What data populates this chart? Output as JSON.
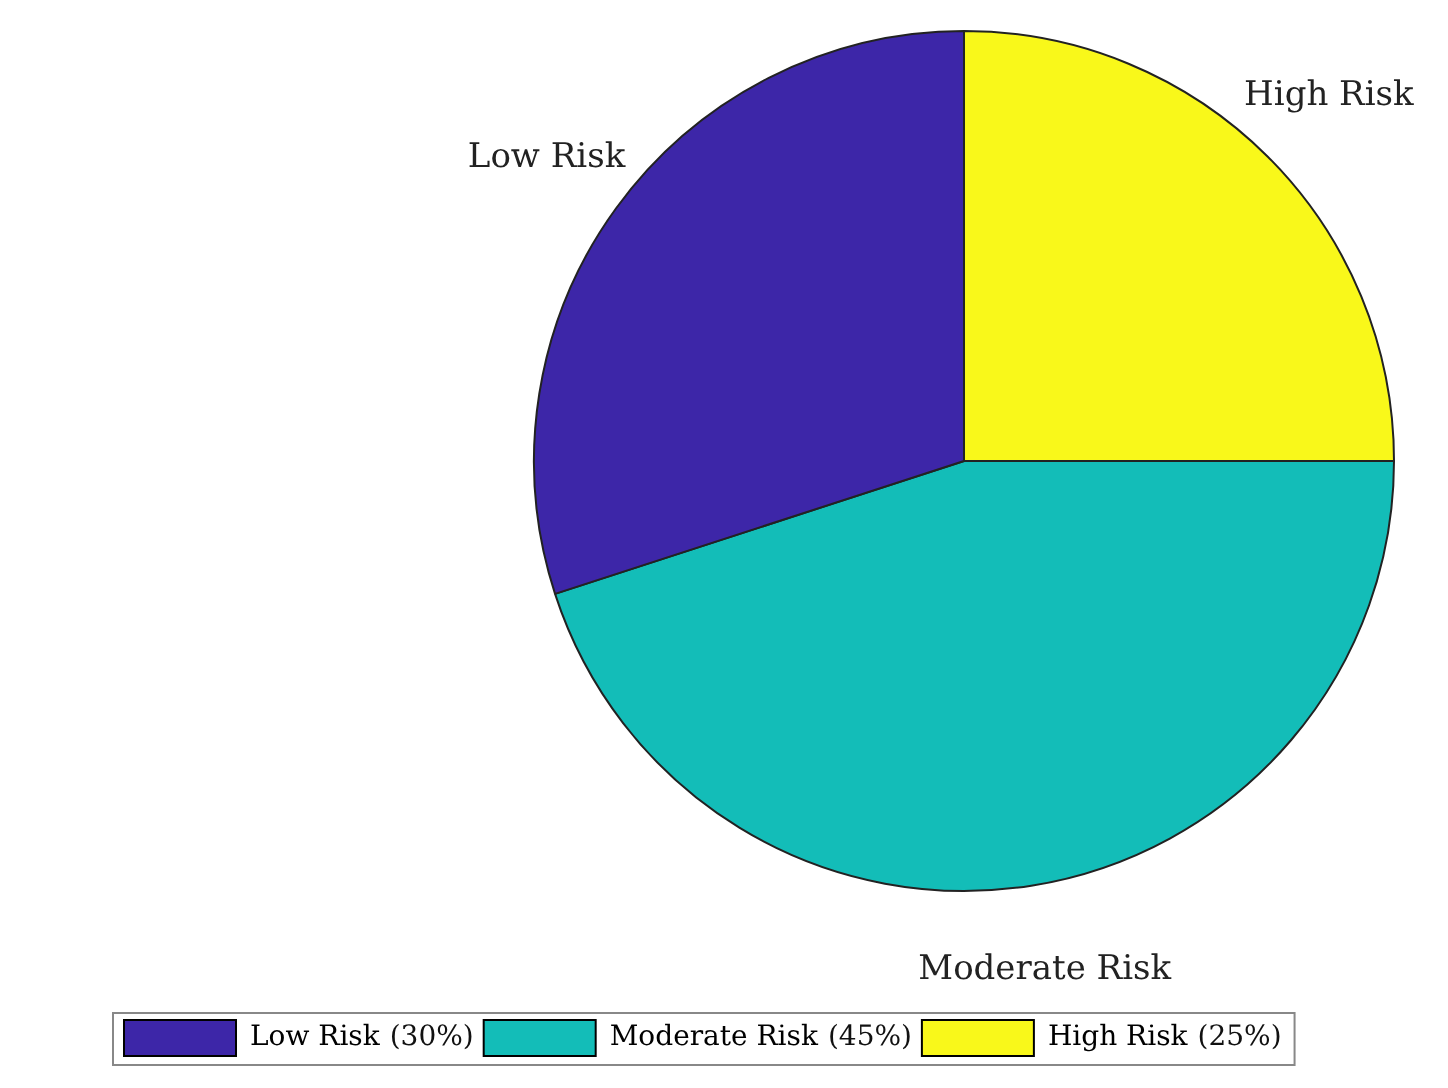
{
  "chart_data": {
    "type": "pie",
    "categories": [
      "Low Risk",
      "Moderate Risk",
      "High Risk"
    ],
    "values": [
      30,
      45,
      25
    ],
    "colors": [
      "#3d26a8",
      "#13bdb8",
      "#f9f81a"
    ],
    "value_labels": [
      "(30%)",
      "(45%)",
      "(25%)"
    ],
    "legend": "bottom"
  }
}
